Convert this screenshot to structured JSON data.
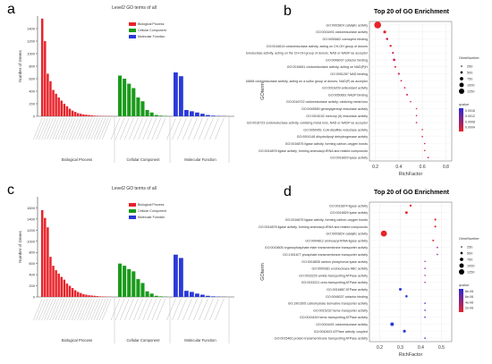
{
  "panels": {
    "a": "a",
    "b": "b",
    "c": "c",
    "d": "d"
  },
  "colors": {
    "biological_process": "#e8232a",
    "cellular_component": "#1a9a1a",
    "molecular_function": "#2a3ad8",
    "dot_high": "#e8232a",
    "dot_low": "#2a2ad8"
  },
  "chart_data": [
    {
      "id": "a",
      "type": "bar",
      "title": "Level2 GO terms of all",
      "ylabel": "Number of Genes",
      "ylim": [
        0,
        1600
      ],
      "yticks": [
        0,
        200,
        400,
        600,
        800,
        1000,
        1200,
        1400
      ],
      "category_labels": [
        "Biological Process",
        "Cellular Component",
        "Molecular Function"
      ],
      "legend": [
        "Biological Process",
        "Cellular Component",
        "Molecular Function"
      ],
      "series": [
        {
          "name": "Biological Process",
          "values": [
            1560,
            1200,
            680,
            560,
            420,
            360,
            300,
            250,
            200,
            160,
            120,
            90,
            70,
            50,
            40,
            30,
            25,
            20,
            15,
            10,
            8,
            6,
            5,
            4,
            3,
            2
          ]
        },
        {
          "name": "Cellular Component",
          "values": [
            650,
            600,
            520,
            450,
            300,
            240,
            100,
            60,
            20,
            10,
            5
          ]
        },
        {
          "name": "Molecular Function",
          "values": [
            700,
            640,
            100,
            80,
            60,
            40,
            20,
            10,
            5,
            3
          ]
        }
      ]
    },
    {
      "id": "b",
      "type": "scatter",
      "title": "Top 20 of GO Enrichment",
      "xlabel": "RichFactor",
      "ylabel": "GOterm",
      "xlim": [
        0.15,
        0.85
      ],
      "xticks": [
        0.2,
        0.4,
        0.6,
        0.8
      ],
      "terms": [
        "GO:0003824 catalytic activity",
        "GO:0016491 oxidoreductase activity",
        "GO:0050662 coenzyme binding",
        "GO:0016614 oxidoreductase activity, acting on CH-OH group of donors",
        "GO:0016616 oxidoreductase activity, acting on the CH-OH group of donors, NAD or NADP as acceptor",
        "GO:0048037 cofactor binding",
        "GO:0016651 oxidoreductase activity, acting on NAD(P)H",
        "GO:0051287 NAD binding",
        "GO:0016668 oxidoreductase activity, acting on a sulfur group of donors, NAD(P) as acceptor",
        "GO:0016209 antioxidant activity",
        "GO:0050661 NADP binding",
        "GO:0016722 oxidoreductase activity, oxidizing metal ions",
        "GO:0045550 geranylgeranyl reductase activity",
        "GO:0016152 mercury (II) reductase activity",
        "GO:0016723 oxidoreductase activity, oxidizing metal ions, NAD or NADP as acceptor",
        "GO:0050451 CoA-disulfide reductase activity",
        "GO:0004148 dihydrolipoyl dehydrogenase activity",
        "GO:0016875 ligase activity, forming carbon-oxygen bonds",
        "GO:0016876 ligase activity, forming aminoacyl-tRNA and related compounds",
        "GO:0016829 lyase activity"
      ],
      "x": [
        0.22,
        0.28,
        0.3,
        0.33,
        0.35,
        0.36,
        0.37,
        0.4,
        0.42,
        0.45,
        0.47,
        0.5,
        0.55,
        0.55,
        0.55,
        0.6,
        0.6,
        0.62,
        0.62,
        0.65
      ],
      "legend_size_title": "GeneNumber",
      "legend_sizes": [
        "250",
        "500",
        "750",
        "1000",
        "1250"
      ],
      "legend_color_title": "qvalue",
      "legend_color_ticks": [
        "0.0016",
        "0.0012",
        "0.0008",
        "0.0004"
      ]
    },
    {
      "id": "c",
      "type": "bar",
      "title": "Level2 GO terms of all",
      "ylabel": "Number of Genes",
      "ylim": [
        0,
        1800
      ],
      "yticks": [
        0,
        200,
        400,
        600,
        800,
        1000,
        1200,
        1400,
        1600
      ],
      "category_labels": [
        "Biological Process",
        "Cellular Component",
        "Molecular Function"
      ],
      "legend": [
        "Biological Process",
        "Cellular Component",
        "Molecular Function"
      ],
      "series": [
        {
          "name": "Biological Process",
          "values": [
            1560,
            1420,
            1250,
            720,
            560,
            480,
            420,
            360,
            310,
            240,
            200,
            160,
            120,
            90,
            70,
            50,
            40,
            30,
            25,
            20,
            15,
            10,
            8,
            6,
            4,
            3
          ]
        },
        {
          "name": "Cellular Component",
          "values": [
            600,
            560,
            500,
            460,
            320,
            250,
            100,
            60,
            20,
            10,
            5
          ]
        },
        {
          "name": "Molecular Function",
          "values": [
            760,
            700,
            110,
            90,
            60,
            40,
            20,
            10,
            5,
            3
          ]
        }
      ]
    },
    {
      "id": "d",
      "type": "scatter",
      "title": "Top 20 of GO Enrichment",
      "xlabel": "RichFactor",
      "ylabel": "GOterm",
      "xlim": [
        0.15,
        0.55
      ],
      "xticks": [
        0.2,
        0.3,
        0.4,
        0.5
      ],
      "terms": [
        "GO:0016874 ligase activity",
        "GO:0016829 lyase activity",
        "GO:0016875 ligase activity, forming carbon-oxygen bonds",
        "GO:0016876 ligase activity, forming aminoacyl-tRNA and related compounds",
        "GO:0003824 catalytic activity",
        "GO:0004812 aminoacyl-tRNA ligase activity",
        "GO:0015605 organophosphate ester transmembrane transporter activity",
        "GO:1901677 phosphate transmembrane transporter activity",
        "GO:0018835 carbon phosphorus lyase activity",
        "GO:0009381 excinuclease ABC activity",
        "GO:0033220 amide-transporting ATPase activity",
        "GO:0033221 urea-transporting ATPase activity",
        "GO:0016887 ATPase activity",
        "GO:0048037 cofactor binding",
        "GO:1901505 carbohydrate derivative transporter activity",
        "GO:0015232 heme transporter activity",
        "GO:0015439 heme-transporting ATPase activity",
        "GO:0016491 oxidoreductase activity",
        "GO:0042623 ATPase activity, coupled",
        "GO:0015462 protein-transmembrane transporting ATPase activity"
      ],
      "x": [
        0.35,
        0.33,
        0.47,
        0.47,
        0.22,
        0.46,
        0.48,
        0.48,
        0.42,
        0.42,
        0.42,
        0.42,
        0.3,
        0.33,
        0.42,
        0.42,
        0.42,
        0.26,
        0.32,
        0.42
      ],
      "legend_size_title": "GeneNumber",
      "legend_sizes": [
        "250",
        "500",
        "750",
        "1000",
        "1250"
      ],
      "legend_color_title": "qvalue",
      "legend_color_ticks": [
        "8e-06",
        "6e-06",
        "4e-06",
        "2e-06"
      ]
    }
  ]
}
